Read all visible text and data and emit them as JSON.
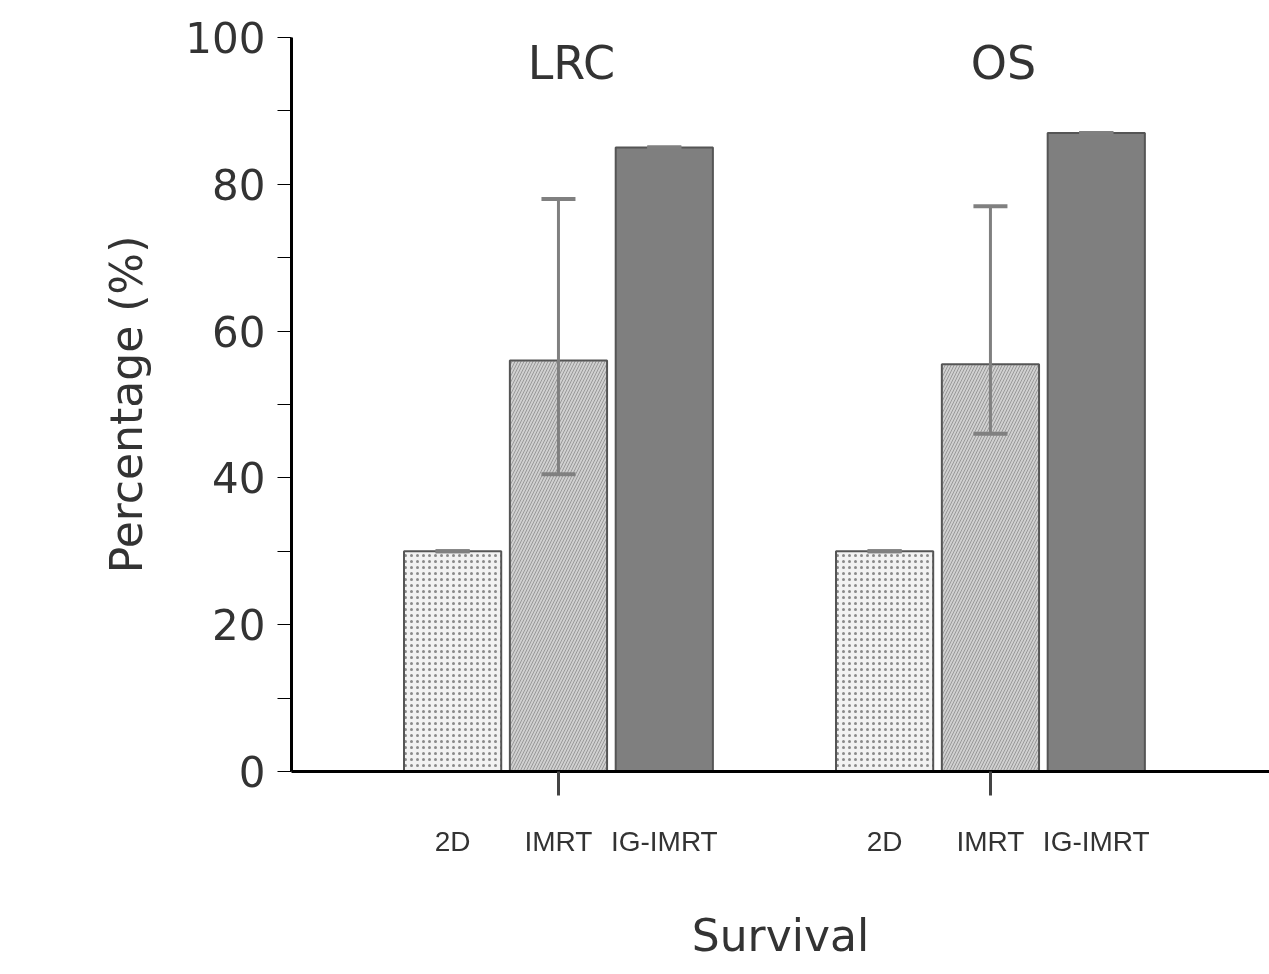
{
  "chart_data": {
    "type": "bar",
    "xlabel": "Survival",
    "ylabel": "Percentage (%)",
    "categories": [
      "LRC",
      "OS"
    ],
    "series": [
      {
        "name": "2D",
        "color": "#f2f2f2",
        "values": [
          30,
          30
        ],
        "errors": [
          0,
          0
        ]
      },
      {
        "name": "IMRT",
        "color": "#d0d0d0",
        "values": [
          56,
          55.5
        ],
        "errors": [
          [
            40.5,
            78
          ],
          [
            46,
            77
          ]
        ]
      },
      {
        "name": "IG-IMRT",
        "color": "#7f7f7f",
        "values": [
          85,
          87
        ],
        "errors": [
          0,
          0
        ]
      }
    ],
    "ylim": [
      0,
      100
    ],
    "yticks": [
      0,
      {
        "value": 10,
        "label": null
      },
      20,
      {
        "value": 30,
        "label": null
      },
      40,
      {
        "value": 50,
        "label": null
      },
      60,
      {
        "value": 70,
        "label": null
      },
      80,
      {
        "value": 90,
        "label": null
      },
      100
    ],
    "grid": false
  }
}
